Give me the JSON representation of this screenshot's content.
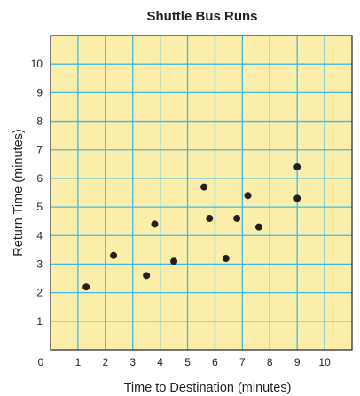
{
  "chart_data": {
    "type": "scatter",
    "title": "Shuttle Bus Runs",
    "xlabel": "Time to Destination (minutes)",
    "ylabel": "Return Time (minutes)",
    "xlim": [
      0,
      11
    ],
    "ylim": [
      0,
      11
    ],
    "x_ticks": [
      "1",
      "2",
      "3",
      "4",
      "5",
      "6",
      "7",
      "8",
      "9",
      "10"
    ],
    "y_ticks": [
      "1",
      "2",
      "3",
      "4",
      "5",
      "6",
      "7",
      "8",
      "9",
      "10"
    ],
    "origin_label": "0",
    "grid": true,
    "points": [
      {
        "x": 1.3,
        "y": 2.2
      },
      {
        "x": 2.3,
        "y": 3.3
      },
      {
        "x": 3.5,
        "y": 2.6
      },
      {
        "x": 3.8,
        "y": 4.4
      },
      {
        "x": 4.5,
        "y": 3.1
      },
      {
        "x": 5.6,
        "y": 5.7
      },
      {
        "x": 5.8,
        "y": 4.6
      },
      {
        "x": 6.4,
        "y": 3.2
      },
      {
        "x": 6.8,
        "y": 4.6
      },
      {
        "x": 7.2,
        "y": 5.4
      },
      {
        "x": 7.6,
        "y": 4.3
      },
      {
        "x": 9.0,
        "y": 5.3
      },
      {
        "x": 9.0,
        "y": 6.4
      }
    ],
    "colors": {
      "plot_background": "#fbeeaa",
      "grid": "#3fb8e5",
      "border": "#231f20",
      "point": "#231f20"
    }
  }
}
